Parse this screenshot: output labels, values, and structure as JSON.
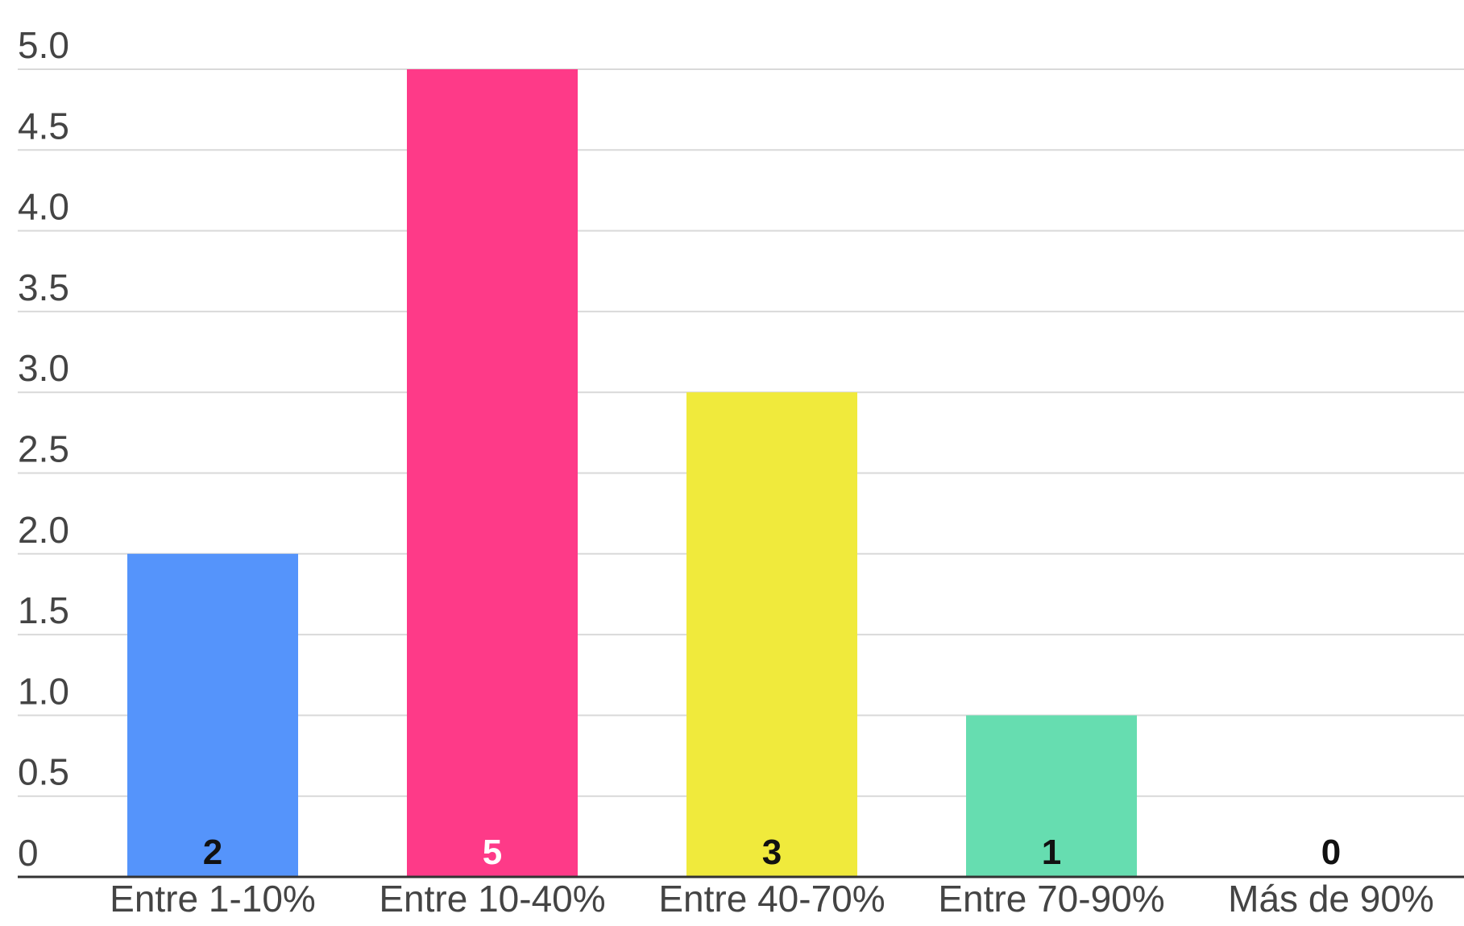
{
  "chart_data": {
    "type": "bar",
    "title": "",
    "xlabel": "",
    "ylabel": "",
    "categories": [
      "Entre 1-10%",
      "Entre 10-40%",
      "Entre 40-70%",
      "Entre 70-90%",
      "Más de 90%"
    ],
    "values": [
      2,
      5,
      3,
      1,
      0
    ],
    "data_labels": [
      "2",
      "5",
      "3",
      "1",
      "0"
    ],
    "bar_colors": [
      "#5594fb",
      "#fe3a88",
      "#f0ea3c",
      "#66ddb0",
      "#cccccc"
    ],
    "data_label_colors": [
      "#111111",
      "#ffffff",
      "#111111",
      "#111111",
      "#111111"
    ],
    "ylim": [
      0,
      5
    ],
    "yticks": [
      0,
      0.5,
      1.0,
      1.5,
      2.0,
      2.5,
      3.0,
      3.5,
      4.0,
      4.5,
      5.0
    ],
    "ytick_labels": [
      "0",
      "0.5",
      "1.0",
      "1.5",
      "2.0",
      "2.5",
      "3.0",
      "3.5",
      "4.0",
      "4.5",
      "5.0"
    ],
    "grid": true,
    "legend": "none"
  }
}
